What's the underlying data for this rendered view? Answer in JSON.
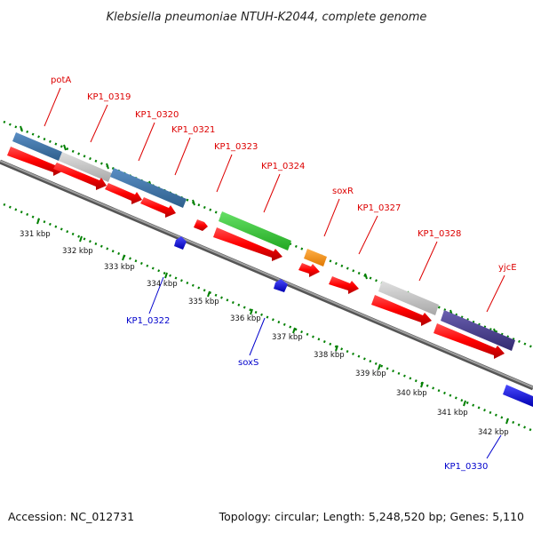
{
  "title": "Klebsiella pneumoniae NTUH-K2044, complete genome",
  "accession": "Accession: NC_012731",
  "topology": "Topology: circular; Length: 5,248,520 bp; Genes: 5,110",
  "ticks": [
    "331 kbp",
    "332 kbp",
    "333 kbp",
    "334 kbp",
    "335 kbp",
    "336 kbp",
    "337 kbp",
    "338 kbp",
    "339 kbp",
    "340 kbp",
    "341 kbp",
    "342 kbp"
  ],
  "labels_forward": [
    "potA",
    "KP1_0319",
    "KP1_0320",
    "KP1_0321",
    "KP1_0323",
    "KP1_0324",
    "soxR",
    "KP1_0327",
    "KP1_0328",
    "yjcE"
  ],
  "labels_reverse": [
    "KP1_0322",
    "soxS",
    "KP1_0330"
  ],
  "colors": {
    "cds": "#ff0000",
    "gene_blue": "#0000ff",
    "steelblue": "#4682b4",
    "gray": "#c8c8c8",
    "green": "#33cc33",
    "orange": "#ff8c00",
    "darkslate": "#483d8b",
    "backbone": "#808080",
    "dots": "#008000"
  }
}
